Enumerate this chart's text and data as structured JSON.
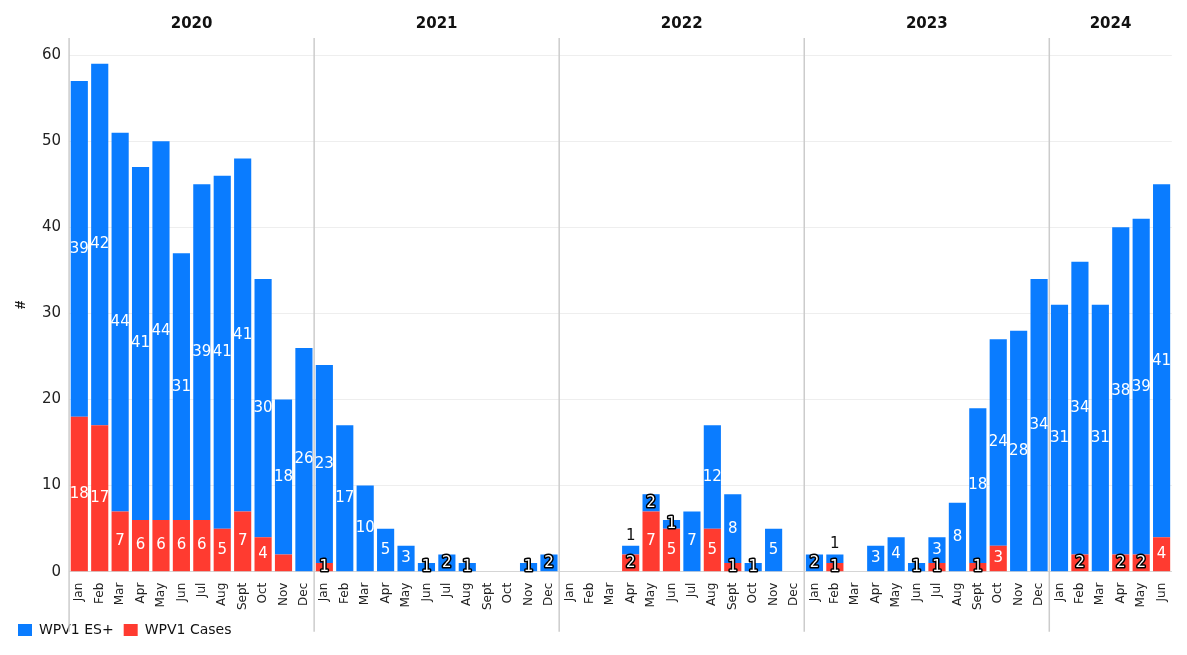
{
  "chart_data": {
    "type": "bar",
    "stacked": true,
    "ylabel": "#",
    "categories": [
      "Jan",
      "Feb",
      "Mar",
      "Apr",
      "May",
      "Jun",
      "Jul",
      "Aug",
      "Sept",
      "Oct",
      "Nov",
      "Dec",
      "Jan",
      "Feb",
      "Mar",
      "Apr",
      "May",
      "Jun",
      "Jul",
      "Aug",
      "Sept",
      "Oct",
      "Nov",
      "Dec",
      "Jan",
      "Feb",
      "Mar",
      "Apr",
      "May",
      "Jun",
      "Jul",
      "Aug",
      "Sept",
      "Oct",
      "Nov",
      "Dec",
      "Jan",
      "Feb",
      "Mar",
      "Apr",
      "May",
      "Jun",
      "Jul",
      "Aug",
      "Sept",
      "Oct",
      "Nov",
      "Dec",
      "Jan",
      "Feb",
      "Mar",
      "Apr",
      "May",
      "Jun"
    ],
    "annotations": [
      "2020",
      "2021",
      "2022",
      "2023",
      "2024"
    ],
    "series": [
      {
        "name": "WPV1 Cases",
        "color": "#ff3b30",
        "values": [
          18,
          17,
          7,
          6,
          6,
          6,
          6,
          5,
          7,
          4,
          2,
          null,
          1,
          null,
          null,
          null,
          null,
          null,
          null,
          null,
          null,
          null,
          null,
          null,
          null,
          null,
          null,
          2,
          7,
          5,
          null,
          5,
          1,
          null,
          null,
          null,
          null,
          1,
          null,
          null,
          null,
          null,
          1,
          null,
          1,
          3,
          null,
          null,
          null,
          2,
          null,
          2,
          2,
          4
        ],
        "value_labels": [
          "18",
          "17",
          "7",
          "6",
          "6",
          "6",
          "6",
          "5",
          "7",
          "4",
          null,
          null,
          "1",
          null,
          null,
          null,
          null,
          null,
          null,
          null,
          null,
          null,
          null,
          null,
          null,
          null,
          null,
          "2",
          "7",
          "5",
          null,
          "5",
          "1",
          null,
          null,
          null,
          null,
          "1",
          null,
          null,
          null,
          null,
          "1",
          null,
          "1",
          "3",
          null,
          null,
          null,
          "2",
          null,
          "2",
          "2",
          "4"
        ]
      },
      {
        "name": "WPV1 ES+",
        "color": "#0a7cff",
        "values": [
          39,
          42,
          44,
          41,
          44,
          31,
          39,
          41,
          41,
          30,
          18,
          26,
          23,
          17,
          10,
          5,
          3,
          1,
          2,
          1,
          null,
          null,
          1,
          2,
          null,
          null,
          null,
          1,
          2,
          1,
          7,
          12,
          8,
          1,
          5,
          null,
          2,
          1,
          null,
          3,
          4,
          1,
          3,
          8,
          18,
          24,
          28,
          34,
          31,
          34,
          31,
          38,
          39,
          41
        ],
        "value_labels": [
          "39",
          "42",
          "44",
          "41",
          "44",
          "31",
          "39",
          "41",
          "41",
          "30",
          "18",
          "26",
          "23",
          "17",
          "10",
          "5",
          "3",
          "1",
          "2",
          "1",
          null,
          null,
          "1",
          "2",
          null,
          null,
          null,
          "1",
          "2",
          "1",
          "7",
          "12",
          "8",
          "1",
          "5",
          null,
          "2",
          "1",
          null,
          "3",
          "4",
          "1",
          "3",
          "8",
          "18",
          "24",
          "28",
          "34",
          "31",
          "34",
          "31",
          "38",
          "39",
          "41"
        ]
      }
    ],
    "ylim": [
      0,
      62
    ],
    "yticks": [
      0,
      10,
      20,
      30,
      40,
      50,
      60
    ],
    "grid": "y",
    "legend": "bottom left"
  }
}
